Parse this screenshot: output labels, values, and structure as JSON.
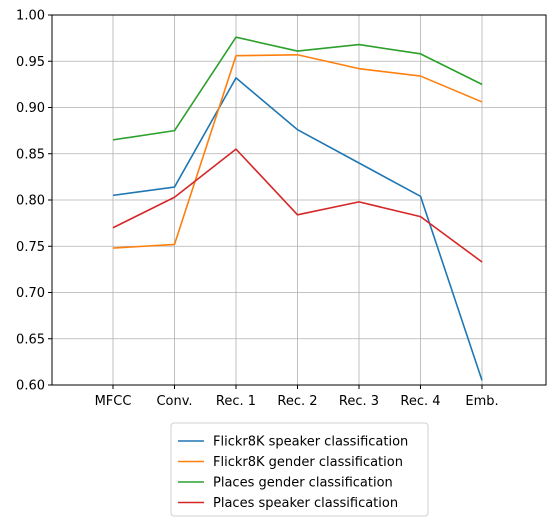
{
  "chart_data": {
    "type": "line",
    "title": "",
    "xlabel": "",
    "ylabel": "",
    "categories": [
      "MFCC",
      "Conv.",
      "Rec. 1",
      "Rec. 2",
      "Rec. 3",
      "Rec. 4",
      "Emb."
    ],
    "ylim": [
      0.6,
      1.0
    ],
    "yticks": [
      "0.60",
      "0.65",
      "0.70",
      "0.75",
      "0.80",
      "0.85",
      "0.90",
      "0.95",
      "1.00"
    ],
    "grid": true,
    "legend_position": "bottom-center",
    "series": [
      {
        "name": "Flickr8K speaker classification",
        "color": "#1f77b4",
        "values": [
          0.805,
          0.814,
          0.932,
          0.876,
          0.84,
          0.804,
          0.605
        ]
      },
      {
        "name": "Flickr8K gender classification",
        "color": "#ff7f0e",
        "values": [
          0.748,
          0.752,
          0.956,
          0.957,
          0.942,
          0.934,
          0.906
        ]
      },
      {
        "name": "Places gender classification",
        "color": "#2ca02c",
        "values": [
          0.865,
          0.875,
          0.976,
          0.961,
          0.968,
          0.958,
          0.925
        ]
      },
      {
        "name": "Places speaker classification",
        "color": "#d62728",
        "values": [
          0.77,
          0.803,
          0.855,
          0.784,
          0.798,
          0.782,
          0.733
        ]
      }
    ]
  }
}
